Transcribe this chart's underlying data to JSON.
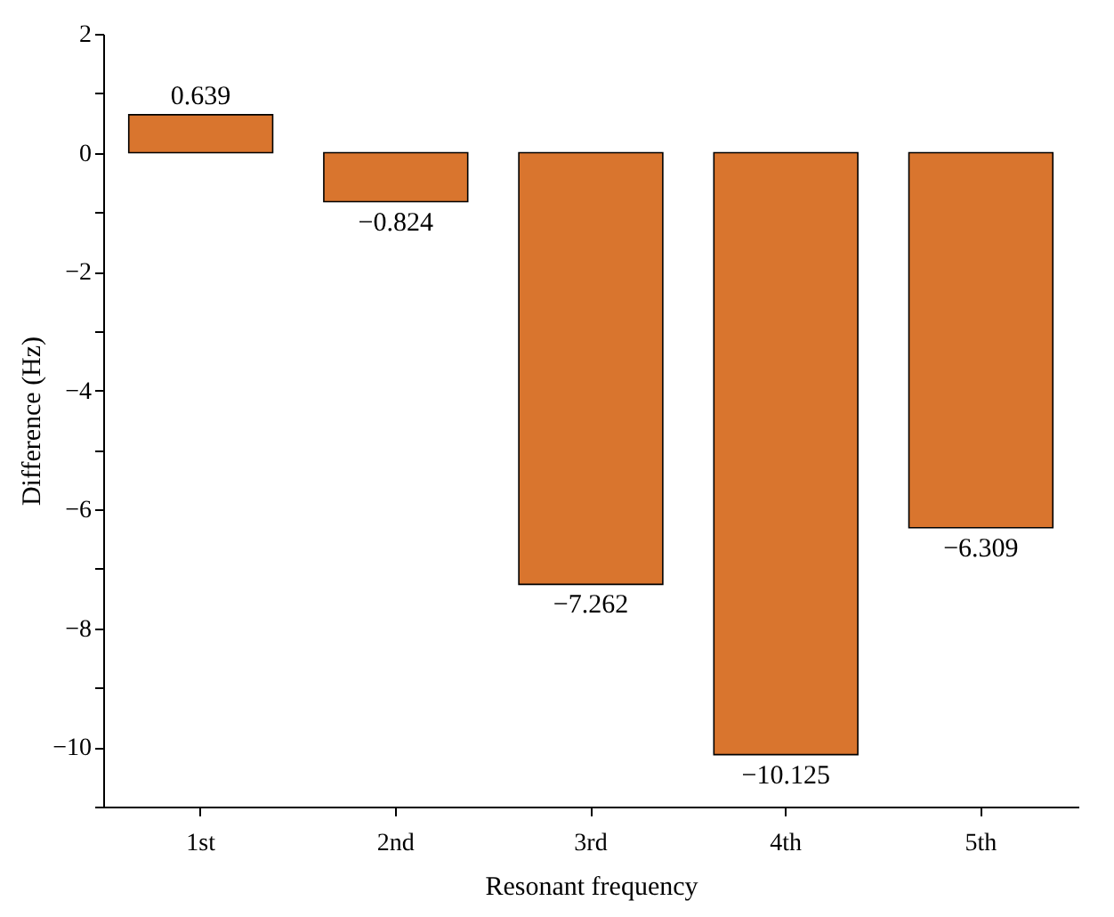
{
  "chart_data": {
    "type": "bar",
    "xlabel": "Resonant frequency",
    "ylabel": "Difference (Hz)",
    "categories": [
      "1st",
      "2nd",
      "3rd",
      "4th",
      "5th"
    ],
    "values": [
      0.639,
      -0.824,
      -7.262,
      -10.125,
      -6.309
    ],
    "value_labels": [
      "0.639",
      "−0.824",
      "−7.262",
      "−10.125",
      "−6.309"
    ],
    "color": "#d9752e",
    "ylim": [
      -11,
      2
    ],
    "yticks": [
      {
        "value": -11,
        "label": null
      },
      {
        "value": -10,
        "label": "−10"
      },
      {
        "value": -9,
        "label": null
      },
      {
        "value": -8,
        "label": "−8"
      },
      {
        "value": -7,
        "label": null
      },
      {
        "value": -6,
        "label": "−6"
      },
      {
        "value": -5,
        "label": null
      },
      {
        "value": -4,
        "label": "−4"
      },
      {
        "value": -3,
        "label": null
      },
      {
        "value": -2,
        "label": "−2"
      },
      {
        "value": -1,
        "label": null
      },
      0,
      {
        "value": 1,
        "label": null
      },
      2
    ],
    "grid": false
  }
}
